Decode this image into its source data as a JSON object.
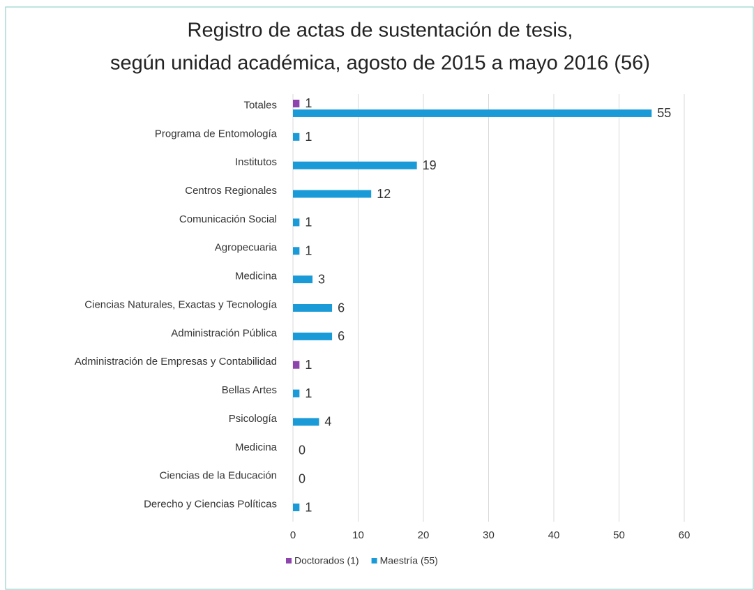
{
  "chart_data": {
    "type": "hbar",
    "title": [
      "Registro de actas de sustentación de tesis,",
      "según unidad académica, agosto de 2015 a mayo 2016 (56)"
    ],
    "categories": [
      "Totales",
      "Programa de Entomología",
      "Institutos",
      "Centros Regionales",
      "Comunicación Social",
      "Agropecuaria",
      "Medicina",
      "Ciencias Naturales, Exactas y Tecnología",
      "Administración Pública",
      "Administración de Empresas y Contabilidad",
      "Bellas Artes",
      "Psicología",
      "Medicina",
      "Ciencias de la Educación",
      "Derecho y Ciencias Políticas"
    ],
    "series": [
      {
        "name": "Doctorados (1)",
        "color": "#8e44ad",
        "values": [
          1,
          null,
          null,
          null,
          null,
          null,
          null,
          null,
          null,
          1,
          null,
          null,
          null,
          null,
          null
        ]
      },
      {
        "name": "Maestría (55)",
        "color": "#1a9ad6",
        "values": [
          55,
          1,
          19,
          12,
          1,
          1,
          3,
          6,
          6,
          null,
          1,
          4,
          0,
          0,
          1
        ]
      }
    ],
    "xlim": [
      0,
      60
    ],
    "xticks": [
      0,
      10,
      20,
      30,
      40,
      50,
      60
    ],
    "grid": true,
    "legend": "bottom"
  }
}
